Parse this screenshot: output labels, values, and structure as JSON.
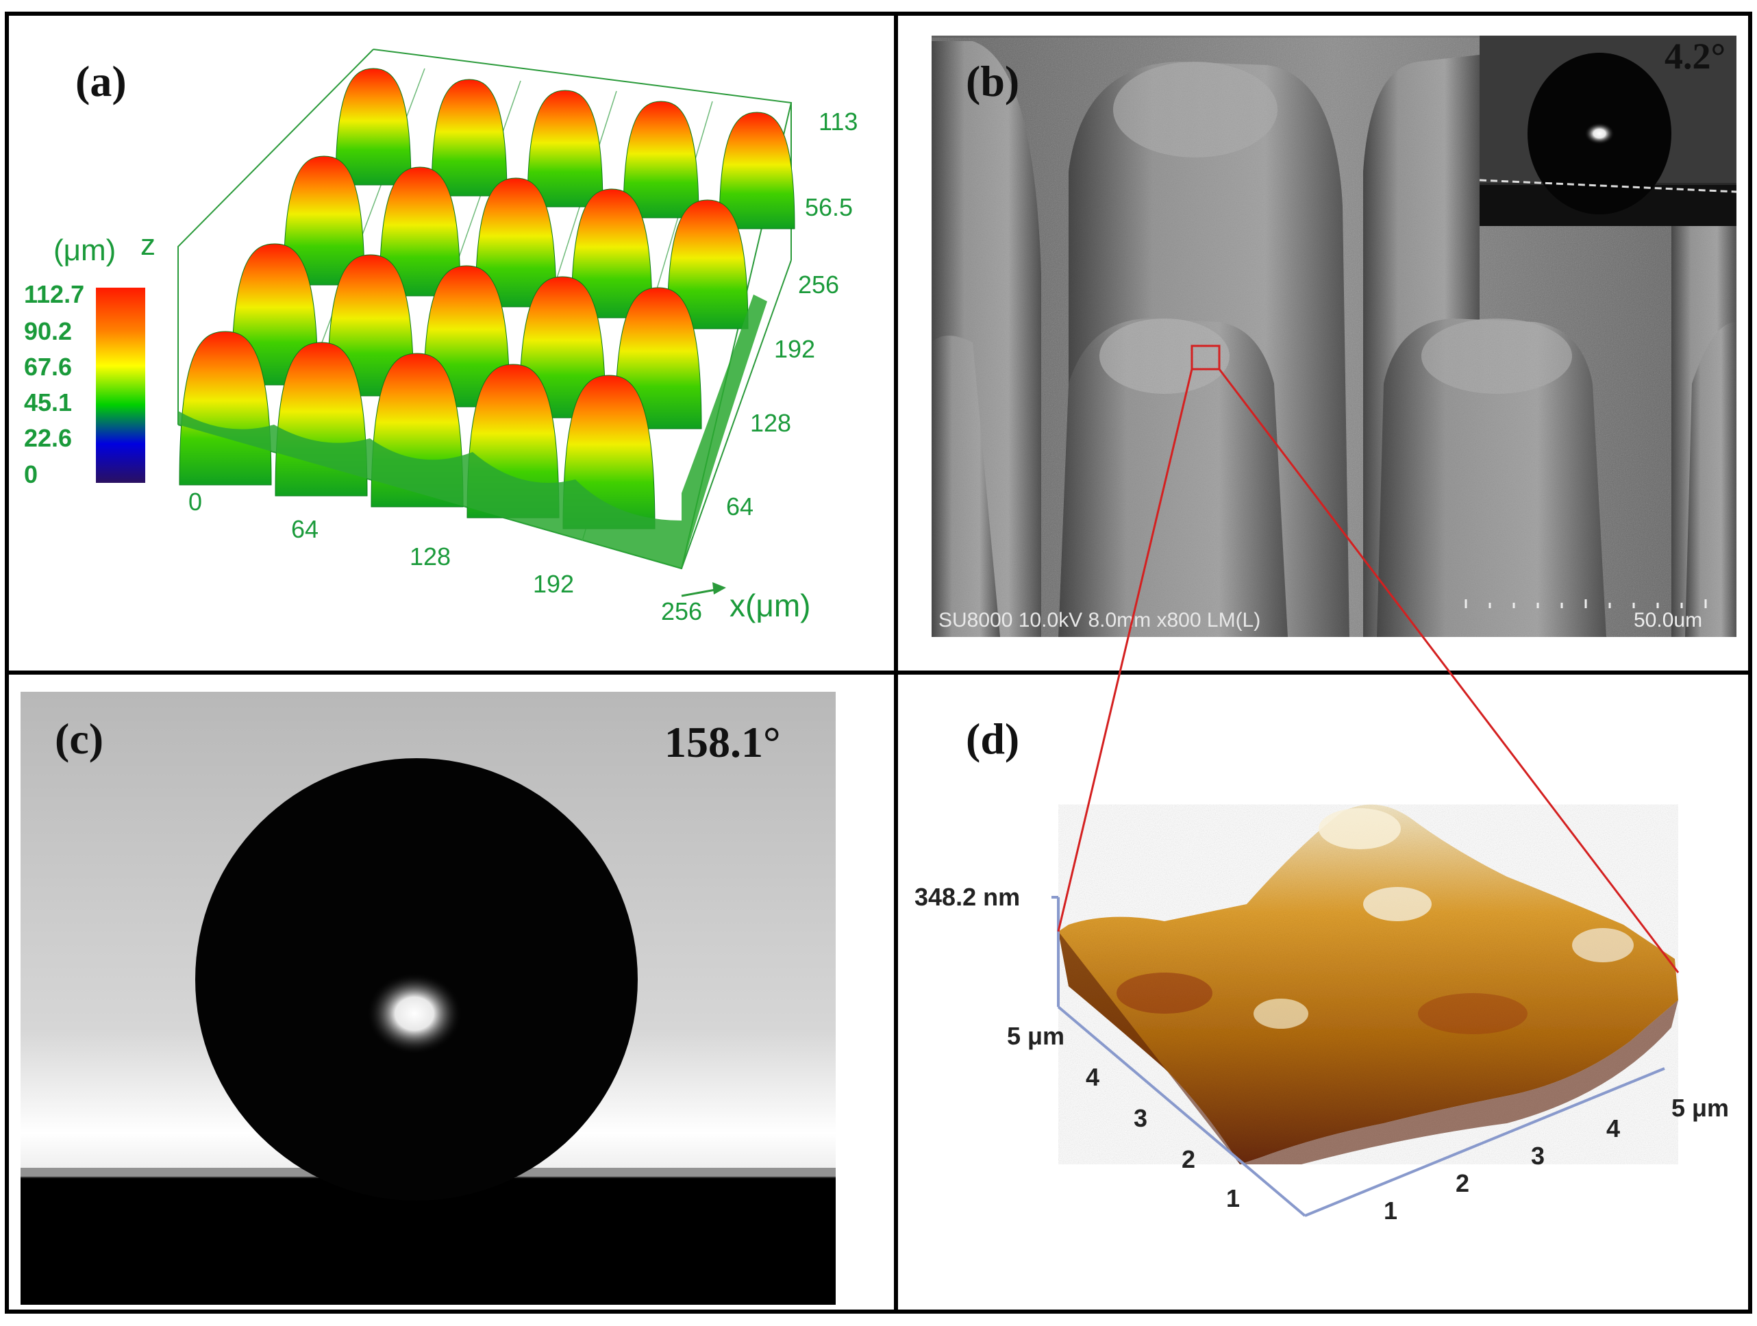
{
  "panels": {
    "a": {
      "label": "(a)",
      "colorbar_title": "(μm)",
      "z_axis_label": "z",
      "colorbar_ticks": [
        "112.7",
        "90.2",
        "67.6",
        "45.1",
        "22.6",
        "0"
      ],
      "x_ticks": [
        "0",
        "64",
        "128",
        "192",
        "256"
      ],
      "y_ticks": [
        "64",
        "128",
        "192",
        "256"
      ],
      "z_ticks": [
        "113",
        "56.5"
      ],
      "x_axis_label": "x(μm)",
      "colormap": [
        "#ff1a00",
        "#ff8000",
        "#ffff00",
        "#00d000",
        "#0000e0",
        "#2a1060"
      ],
      "text_color": "#1a9a3a"
    },
    "b": {
      "label": "(b)",
      "sem_info": "SU8000 10.0kV 8.0mm x800 LM(L)",
      "scale_label": "50.0um",
      "inset_angle": "4.2°"
    },
    "c": {
      "label": "(c)",
      "angle": "158.1°"
    },
    "d": {
      "label": "(d)",
      "height_label": "348.2 nm",
      "left_axis_ticks": [
        "1",
        "2",
        "3",
        "4"
      ],
      "left_axis_end": "5 μm",
      "right_axis_ticks": [
        "1",
        "2",
        "3",
        "4"
      ],
      "right_axis_end": "5 μm"
    }
  },
  "colors": {
    "border": "#000000",
    "zoom_line": "#d42020",
    "afm_axis": "#8899cc"
  }
}
